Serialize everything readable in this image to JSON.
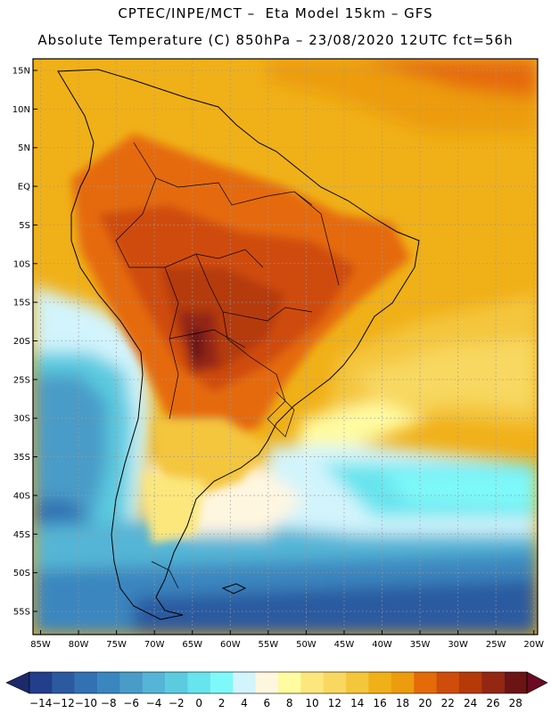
{
  "header": {
    "line1": "CPTEC/INPE/MCT –  Eta Model 15km – GFS",
    "line2": "Absolute Temperature (C) 850hPa – 23/08/2020 12UTC fct=56h"
  },
  "axes": {
    "lat_labels": [
      "15N",
      "10N",
      "5N",
      "EQ",
      "5S",
      "10S",
      "15S",
      "20S",
      "25S",
      "30S",
      "35S",
      "40S",
      "45S",
      "50S",
      "55S"
    ],
    "lon_labels": [
      "85W",
      "80W",
      "75W",
      "70W",
      "65W",
      "60W",
      "55W",
      "50W",
      "45W",
      "40W",
      "35W",
      "30W",
      "25W",
      "20W"
    ],
    "lat_values": [
      15,
      10,
      5,
      0,
      -5,
      -10,
      -15,
      -20,
      -25,
      -30,
      -35,
      -40,
      -45,
      -50,
      -55
    ],
    "lon_values": [
      -85,
      -80,
      -75,
      -70,
      -65,
      -60,
      -55,
      -50,
      -45,
      -40,
      -35,
      -30,
      -25,
      -20
    ],
    "grid": "dotted"
  },
  "colorbar": {
    "labels": [
      "-14",
      "-12",
      "-10",
      "-8",
      "-6",
      "-4",
      "-2",
      "0",
      "2",
      "4",
      "6",
      "8",
      "10",
      "12",
      "14",
      "16",
      "18",
      "20",
      "22",
      "24",
      "26",
      "28"
    ],
    "colors": [
      "#233f8c",
      "#2c5aa0",
      "#3172b3",
      "#3a86bf",
      "#4a9cc8",
      "#55b5d6",
      "#5ccbe0",
      "#67e4ee",
      "#7ef9f9",
      "#d2f4fc",
      "#fff6e0",
      "#fffba0",
      "#fbe77c",
      "#f8d860",
      "#f4c63c",
      "#f0b018",
      "#ec9c0c",
      "#e56a08",
      "#cf4c0a",
      "#b53a08",
      "#932712",
      "#6b1414"
    ],
    "under_color": "#1c2a6b",
    "over_color": "#6b0a22",
    "unit": "C"
  }
}
